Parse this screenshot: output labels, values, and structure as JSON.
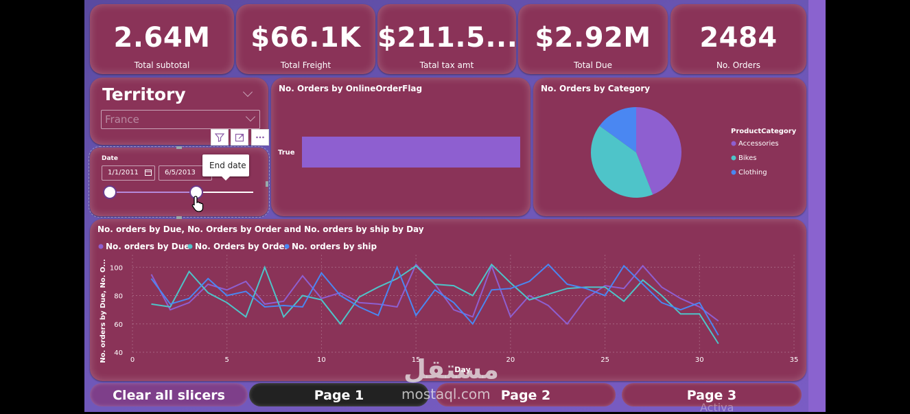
{
  "kpis": [
    {
      "value": "2.64M",
      "label": "Total subtotal"
    },
    {
      "value": "$66.1K",
      "label": "Total Freight"
    },
    {
      "value": "$211.5...",
      "label": "Tatal tax amt"
    },
    {
      "value": "$2.92M",
      "label": "Total Due"
    },
    {
      "value": "2484",
      "label": "No. Orders"
    }
  ],
  "territory": {
    "title": "Territory",
    "selected": "France"
  },
  "date_slicer": {
    "label": "Date",
    "start": "1/1/2011",
    "end": "6/5/2013",
    "tooltip": "End date",
    "start_fraction": 0.0,
    "end_fraction": 0.6
  },
  "visual_header_icons": [
    "filter-icon",
    "focus-mode-icon",
    "more-options-icon"
  ],
  "bar_card": {
    "title": "No. Orders by OnlineOrderFlag"
  },
  "pie_card": {
    "title": "No. Orders by Category"
  },
  "line_card": {
    "title": "No. orders by Due, No. Orders by Order and No. orders by ship by Day"
  },
  "buttons": {
    "clear": "Clear all slicers",
    "page1": "Page 1",
    "page2": "Page 2",
    "page3": "Page 3"
  },
  "watermark": {
    "arabic": "مستقل",
    "latin": "mostaql.com"
  },
  "activation_text": "Activa",
  "colors": {
    "purple": "#8e5fd0",
    "teal": "#4ec4c9",
    "blue": "#4a87f2",
    "card": "#8a3358",
    "page_active": "#222222"
  },
  "chart_data": [
    {
      "type": "bar",
      "orientation": "horizontal",
      "categories": [
        "True"
      ],
      "values": [
        2484
      ],
      "xlim": [
        0,
        2484
      ]
    },
    {
      "type": "pie",
      "legend_title": "ProductCategory",
      "legend_position": "right",
      "labels": [
        "Accessories",
        "Bikes",
        "Clothing"
      ],
      "values": [
        44,
        41,
        15
      ]
    },
    {
      "type": "line",
      "xlabel": "Day",
      "ylabel": "No. orders by Due, No. O...",
      "xlim": [
        0,
        35
      ],
      "ylim": [
        40,
        105
      ],
      "xticks": [
        0,
        5,
        10,
        15,
        20,
        25,
        30,
        35
      ],
      "yticks": [
        40,
        60,
        80,
        100
      ],
      "grid": true,
      "legend_position": "top-left",
      "x": [
        1,
        2,
        3,
        4,
        5,
        6,
        7,
        8,
        9,
        10,
        11,
        12,
        13,
        14,
        15,
        16,
        17,
        18,
        19,
        20,
        21,
        22,
        23,
        24,
        25,
        26,
        27,
        28,
        29,
        30,
        31
      ],
      "series": [
        {
          "name": "No. orders by Due",
          "values": [
            95,
            70,
            75,
            88,
            84,
            90,
            74,
            76,
            94,
            78,
            82,
            75,
            74,
            72,
            102,
            88,
            70,
            65,
            101,
            65,
            80,
            73,
            60,
            78,
            87,
            85,
            101,
            86,
            78,
            72,
            62
          ]
        },
        {
          "name": "No. Orders by Order",
          "values": [
            74,
            72,
            97,
            82,
            75,
            65,
            100,
            65,
            80,
            77,
            60,
            79,
            86,
            92,
            101,
            88,
            87,
            80,
            102,
            89,
            77,
            81,
            85,
            86,
            86,
            76,
            91,
            80,
            67,
            67,
            46
          ]
        },
        {
          "name": "No. orders by ship",
          "values": [
            92,
            74,
            78,
            92,
            80,
            83,
            72,
            73,
            72,
            96,
            80,
            72,
            66,
            100,
            66,
            84,
            75,
            60,
            84,
            85,
            90,
            102,
            88,
            85,
            80,
            101,
            88,
            75,
            70,
            75,
            52
          ]
        }
      ]
    }
  ]
}
